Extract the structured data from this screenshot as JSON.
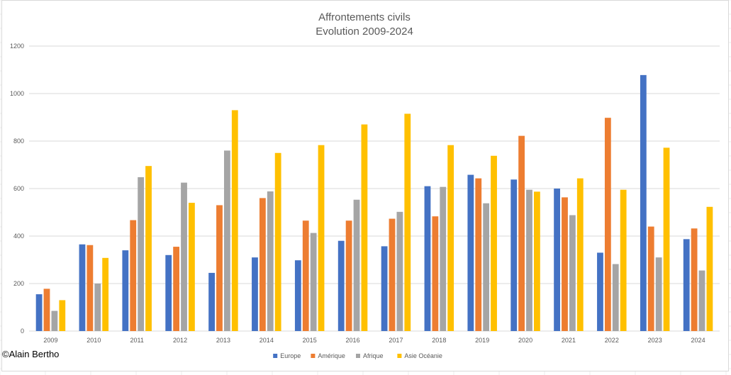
{
  "chart_data": {
    "type": "bar",
    "title": "Affrontements civils",
    "subtitle": "Evolution 2009-2024",
    "xlabel": "",
    "ylabel": "",
    "ylim": [
      0,
      1200
    ],
    "yticks": [
      0,
      200,
      400,
      600,
      800,
      1000,
      1200
    ],
    "grid": true,
    "legend_position": "bottom",
    "categories": [
      "2009",
      "2010",
      "2011",
      "2012",
      "2013",
      "2014",
      "2015",
      "2016",
      "2017",
      "2018",
      "2019",
      "2020",
      "2021",
      "2022",
      "2023",
      "2024"
    ],
    "series": [
      {
        "name": "Europe",
        "color": "#4472c4",
        "values": [
          155,
          365,
          340,
          320,
          245,
          310,
          298,
          380,
          357,
          610,
          658,
          638,
          600,
          330,
          1078,
          387
        ]
      },
      {
        "name": "Amérique",
        "color": "#ed7d31",
        "values": [
          178,
          362,
          467,
          355,
          530,
          560,
          465,
          465,
          473,
          483,
          643,
          822,
          563,
          898,
          440,
          432
        ]
      },
      {
        "name": "Afrique",
        "color": "#a5a5a5",
        "values": [
          85,
          200,
          648,
          625,
          760,
          588,
          413,
          553,
          502,
          607,
          538,
          595,
          488,
          282,
          310,
          255
        ]
      },
      {
        "name": "Asie Océanie",
        "color": "#ffc000",
        "values": [
          130,
          308,
          695,
          540,
          930,
          750,
          783,
          870,
          915,
          783,
          738,
          587,
          643,
          595,
          772,
          523
        ]
      }
    ]
  },
  "footer": {
    "copyright": "©Alain Bertho"
  }
}
